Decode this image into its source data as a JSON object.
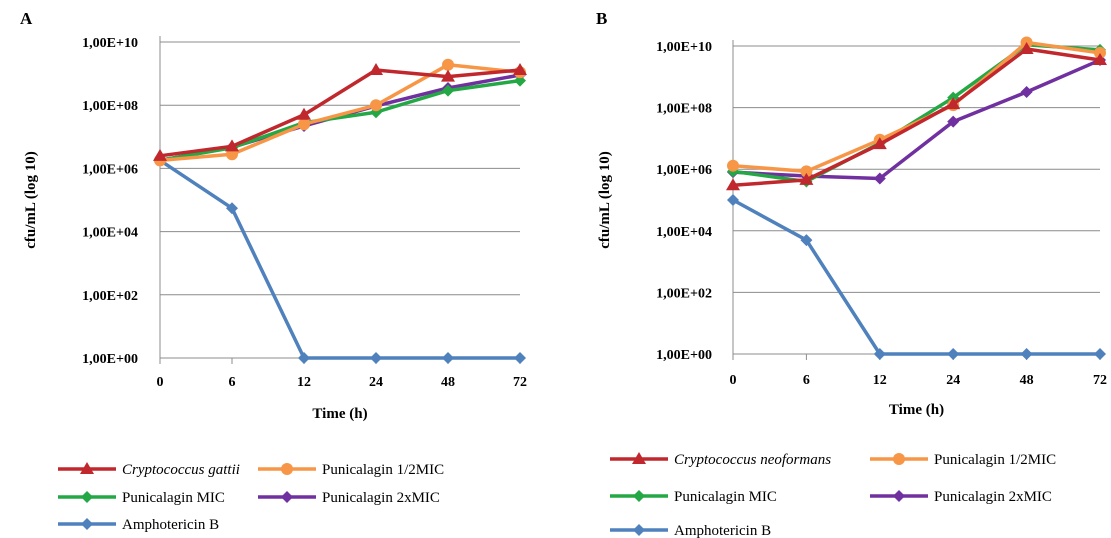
{
  "chart_data": [
    {
      "type": "line",
      "panel_label": "A",
      "xlabel": "Time (h)",
      "ylabel": "cfu/mL (log 10)",
      "categories": [
        "0",
        "6",
        "12",
        "24",
        "48",
        "72"
      ],
      "y_scale": "log",
      "ylim": [
        1,
        10000000000
      ],
      "y_ticks": [
        {
          "value": 1,
          "label": "1,00E+00"
        },
        {
          "value": 100,
          "label": "1,00E+02"
        },
        {
          "value": 10000,
          "label": "1,00E+04"
        },
        {
          "value": 1000000,
          "label": "1,00E+06"
        },
        {
          "value": 100000000,
          "label": "1,00E+08"
        },
        {
          "value": 10000000000,
          "label": "1,00E+10"
        }
      ],
      "grid": true,
      "legend_position": "bottom",
      "series": [
        {
          "name": "Cryptococcus gattii",
          "italic": true,
          "color": "#c0282d",
          "marker": "triangle",
          "values": [
            2500000,
            5000000,
            50000000,
            1300000000,
            800000000,
            1300000000
          ]
        },
        {
          "name": "Punicalagin 1/2MIC",
          "italic": false,
          "color": "#f79646",
          "marker": "circle",
          "values": [
            1800000,
            2800000,
            25000000,
            100000000,
            1900000000,
            1100000000
          ]
        },
        {
          "name": "Punicalagin MIC",
          "italic": false,
          "color": "#23a845",
          "marker": "diamond",
          "values": [
            1800000,
            4500000,
            28000000,
            60000000,
            290000000,
            600000000
          ]
        },
        {
          "name": "Punicalagin 2xMIC",
          "italic": false,
          "color": "#7030a0",
          "marker": "diamond",
          "values": [
            1800000,
            4700000,
            22000000,
            95000000,
            350000000,
            900000000
          ]
        },
        {
          "name": "Amphotericin B",
          "italic": false,
          "color": "#4f81bd",
          "marker": "diamond",
          "values": [
            1800000,
            55000,
            1,
            1,
            1,
            1
          ]
        }
      ]
    },
    {
      "type": "line",
      "panel_label": "B",
      "xlabel": "Time (h)",
      "ylabel": "cfu/mL (log 10)",
      "categories": [
        "0",
        "6",
        "12",
        "24",
        "48",
        "72"
      ],
      "y_scale": "log",
      "ylim": [
        1,
        10000000000
      ],
      "y_ticks": [
        {
          "value": 1,
          "label": "1,00E+00"
        },
        {
          "value": 100,
          "label": "1,00E+02"
        },
        {
          "value": 10000,
          "label": "1,00E+04"
        },
        {
          "value": 1000000,
          "label": "1,00E+06"
        },
        {
          "value": 100000000,
          "label": "1,00E+08"
        },
        {
          "value": 10000000000,
          "label": "1,00E+10"
        }
      ],
      "grid": true,
      "legend_position": "bottom",
      "series": [
        {
          "name": "Cryptococcus neoformans",
          "italic": true,
          "color": "#c0282d",
          "marker": "triangle",
          "values": [
            300000,
            450000,
            6500000,
            130000000,
            8000000000,
            3500000000
          ]
        },
        {
          "name": "Punicalagin 1/2MIC",
          "italic": false,
          "color": "#f79646",
          "marker": "circle",
          "values": [
            1300000,
            850000,
            9000000,
            120000000,
            13000000000,
            6000000000
          ]
        },
        {
          "name": "Punicalagin MIC",
          "italic": false,
          "color": "#23a845",
          "marker": "diamond",
          "values": [
            850000,
            400000,
            7000000,
            210000000,
            11000000000,
            7500000000
          ]
        },
        {
          "name": "Punicalagin 2xMIC",
          "italic": false,
          "color": "#7030a0",
          "marker": "diamond",
          "values": [
            800000,
            600000,
            500000,
            35000000,
            320000000,
            3500000000
          ]
        },
        {
          "name": "Amphotericin B",
          "italic": false,
          "color": "#4f81bd",
          "marker": "diamond",
          "values": [
            100000,
            5000,
            1,
            1,
            1,
            1
          ]
        }
      ]
    }
  ]
}
